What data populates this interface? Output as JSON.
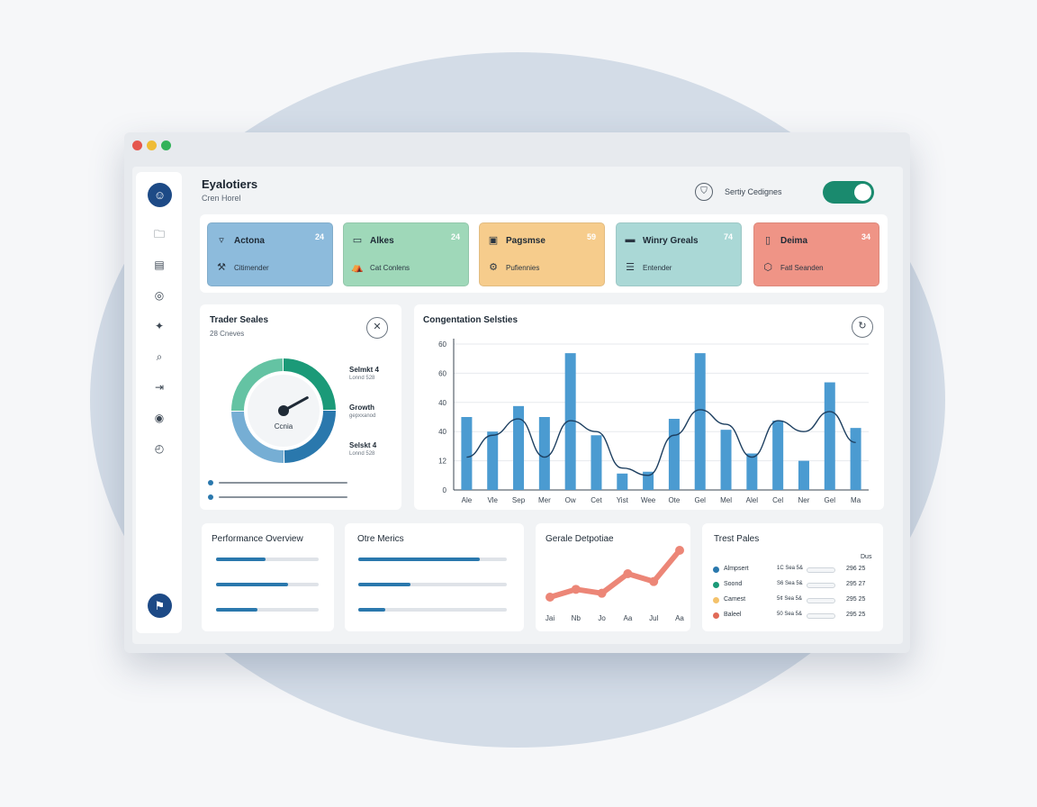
{
  "app": {
    "title": "Eyalotiers",
    "subtitle": "Cren Horel"
  },
  "header": {
    "settings_label": "Sertiy Cedignes",
    "settings_icon": "shield-icon",
    "toggle_on": true
  },
  "sidebar": {
    "logo_icon": "user-icon",
    "items": [
      {
        "name": "folder-icon",
        "glyph": "🗀"
      },
      {
        "name": "calendar-icon",
        "glyph": "▤"
      },
      {
        "name": "target-icon",
        "glyph": "◎"
      },
      {
        "name": "pin-icon",
        "glyph": "✦"
      },
      {
        "name": "search-icon",
        "glyph": "⌕"
      },
      {
        "name": "logout-icon",
        "glyph": "⇥"
      },
      {
        "name": "eye-icon",
        "glyph": "◉"
      },
      {
        "name": "gauge-icon",
        "glyph": "◴"
      }
    ],
    "bottom_icon": "flag-icon"
  },
  "cards": [
    {
      "title": "Actona",
      "count": "24",
      "sub": "Citimender",
      "color": "#8dbbdc",
      "icon": "cup-icon",
      "glyph": "▿",
      "icon2": "hammer-icon",
      "glyph2": "⚒"
    },
    {
      "title": "Alkes",
      "count": "24",
      "sub": "Cat Conlens",
      "color": "#9fd8b9",
      "icon": "screen-icon",
      "glyph": "▭",
      "icon2": "tent-icon",
      "glyph2": "⛺"
    },
    {
      "title": "Pagsmse",
      "count": "59",
      "sub": "Pufiennies",
      "color": "#f6cc8c",
      "icon": "image-icon",
      "glyph": "▣",
      "icon2": "tools-icon",
      "glyph2": "⚙"
    },
    {
      "title": "Winry Greals",
      "count": "74",
      "sub": "Entender",
      "color": "#aad8d6",
      "icon": "message-icon",
      "glyph": "▬",
      "icon2": "list-icon",
      "glyph2": "☰"
    },
    {
      "title": "Deima",
      "count": "34",
      "sub": "Fatl Seanden",
      "color": "#ef9486",
      "icon": "document-icon",
      "glyph": "▯",
      "icon2": "shield-icon",
      "glyph2": "⬡"
    }
  ],
  "gauge_panel": {
    "title": "Trader Seales",
    "subtitle": "28 Cneves",
    "center_label": "Ccnia",
    "legend": [
      {
        "title": "Selmkt 4",
        "sub": "Lonnd 528"
      },
      {
        "title": "Growth",
        "sub": "gepxxanod"
      },
      {
        "title": "Selskt 4",
        "sub": "Lonnd 528"
      }
    ],
    "gauge": {
      "segments": [
        {
          "value": 0.25,
          "color": "#1b9a78"
        },
        {
          "value": 0.25,
          "color": "#2a78ad"
        },
        {
          "value": 0.25,
          "color": "#76aed4"
        },
        {
          "value": 0.25,
          "color": "#64c3a3"
        }
      ],
      "needle_fraction": 0.17
    },
    "sliders": [
      0.0,
      0.0
    ]
  },
  "bar_panel": {
    "title": "Congentation Selsties"
  },
  "chart_data": [
    {
      "type": "bar",
      "title": "Congentation Selsties",
      "categories": [
        "Ale",
        "Vle",
        "Sep",
        "Mer",
        "Ow",
        "Cet",
        "Yist",
        "Wee",
        "Ote",
        "Gel",
        "Mel",
        "Alel",
        "Cel",
        "Ner",
        "Gel",
        "Ma"
      ],
      "values": [
        40,
        32,
        46,
        40,
        75,
        30,
        9,
        10,
        39,
        75,
        33,
        20,
        38,
        16,
        59,
        34
      ],
      "line_values": [
        18,
        30,
        39,
        18,
        38,
        32,
        12,
        8,
        30,
        44,
        36,
        18,
        38,
        32,
        43,
        26
      ],
      "yticks": [
        "0",
        "12",
        "40",
        "40",
        "60",
        "60"
      ],
      "ylim": [
        0,
        80
      ]
    },
    {
      "type": "line",
      "title": "Gerale Detpotiae",
      "categories": [
        "Jai",
        "Nb",
        "Jo",
        "Aa",
        "Jul",
        "Aa"
      ],
      "values": [
        2,
        3,
        2.5,
        5,
        4,
        8
      ],
      "color": "#ec8677"
    }
  ],
  "performance": {
    "title": "Performance Overview",
    "bars": [
      0.48,
      0.7,
      0.4
    ]
  },
  "other_metrics": {
    "title": "Otre Merics",
    "bars": [
      0.82,
      0.35,
      0.18
    ]
  },
  "table_panel": {
    "title": "Trest Pales",
    "column_header": "Dus",
    "rows": [
      {
        "name": "Almpsert",
        "color": "#2a78ad",
        "mid": "1C Sea 5&",
        "value": "296 25"
      },
      {
        "name": "Soond",
        "color": "#1b9a78",
        "mid": "S6 Sea 5&",
        "value": "295 27"
      },
      {
        "name": "Camest",
        "color": "#f4c26b",
        "mid": "5¢ Sea 5&",
        "value": "295 25"
      },
      {
        "name": "Baleel",
        "color": "#e06a57",
        "mid": "50 Sea 5&",
        "value": "295 25"
      }
    ]
  }
}
